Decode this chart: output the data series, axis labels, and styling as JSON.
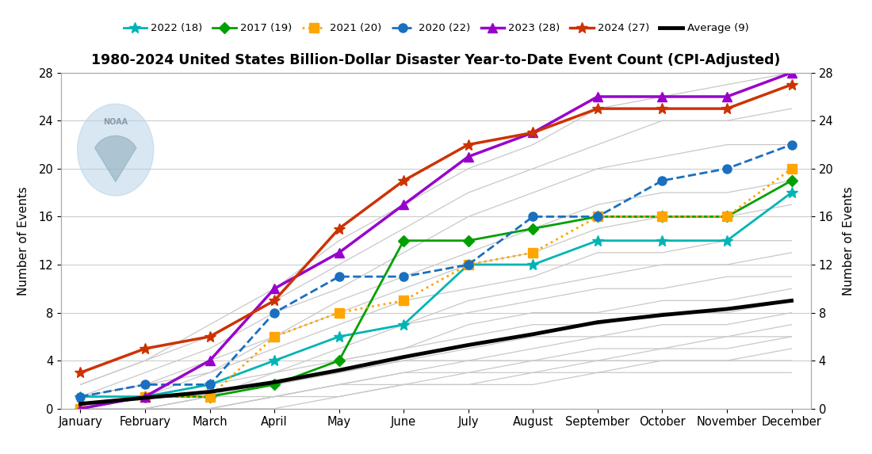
{
  "title": "1980-2024 United States Billion-Dollar Disaster Year-to-Date Event Count (CPI-Adjusted)",
  "ylabel_left": "Number of Events",
  "ylabel_right": "Number of Events",
  "months": [
    "January",
    "February",
    "March",
    "April",
    "May",
    "June",
    "July",
    "August",
    "September",
    "October",
    "November",
    "December"
  ],
  "ylim": [
    0,
    28
  ],
  "yticks": [
    0,
    4,
    8,
    12,
    16,
    20,
    24,
    28
  ],
  "series": {
    "2022": {
      "label": "2022 (18)",
      "color": "#00B4B4",
      "linestyle": "-",
      "marker": "*",
      "markersize": 10,
      "linewidth": 2.0,
      "zorder": 5,
      "data": [
        1,
        1,
        2,
        4,
        6,
        7,
        12,
        12,
        14,
        14,
        14,
        18
      ]
    },
    "2017": {
      "label": "2017 (19)",
      "color": "#00A000",
      "linestyle": "-",
      "marker": "D",
      "markersize": 7,
      "linewidth": 2.0,
      "zorder": 5,
      "data": [
        0,
        1,
        1,
        2,
        4,
        14,
        14,
        15,
        16,
        16,
        16,
        19
      ]
    },
    "2021": {
      "label": "2021 (20)",
      "color": "#FFA500",
      "linestyle": ":",
      "marker": "s",
      "markersize": 8,
      "linewidth": 2.0,
      "zorder": 5,
      "data": [
        0,
        1,
        1,
        6,
        8,
        9,
        12,
        13,
        16,
        16,
        16,
        20
      ]
    },
    "2020": {
      "label": "2020 (22)",
      "color": "#1A6FBF",
      "linestyle": "--",
      "marker": "o",
      "markersize": 8,
      "linewidth": 2.0,
      "zorder": 5,
      "data": [
        1,
        2,
        2,
        8,
        11,
        11,
        12,
        16,
        16,
        19,
        20,
        22
      ]
    },
    "2023": {
      "label": "2023 (28)",
      "color": "#9900CC",
      "linestyle": "-",
      "marker": "^",
      "markersize": 9,
      "linewidth": 2.5,
      "zorder": 6,
      "data": [
        0,
        1,
        4,
        10,
        13,
        17,
        21,
        23,
        26,
        26,
        26,
        28
      ]
    },
    "2024": {
      "label": "2024 (27)",
      "color": "#CC3300",
      "linestyle": "-",
      "marker": "*",
      "markersize": 10,
      "linewidth": 2.5,
      "zorder": 6,
      "data": [
        3,
        5,
        6,
        9,
        15,
        19,
        22,
        23,
        25,
        25,
        25,
        27
      ]
    },
    "average": {
      "label": "Average (9)",
      "color": "#000000",
      "linestyle": "-",
      "marker": "None",
      "markersize": 0,
      "linewidth": 3.5,
      "zorder": 7,
      "data": [
        0.4,
        0.9,
        1.4,
        2.2,
        3.2,
        4.3,
        5.3,
        6.2,
        7.2,
        7.8,
        8.3,
        9.0
      ]
    }
  },
  "background_gray_lines": [
    [
      0,
      0,
      0,
      0,
      1,
      2,
      2,
      2,
      3,
      3,
      3,
      3
    ],
    [
      0,
      0,
      0,
      1,
      1,
      2,
      2,
      3,
      3,
      4,
      4,
      4
    ],
    [
      0,
      0,
      0,
      1,
      2,
      2,
      3,
      3,
      4,
      4,
      4,
      5
    ],
    [
      0,
      0,
      0,
      1,
      2,
      3,
      3,
      4,
      4,
      5,
      5,
      6
    ],
    [
      0,
      0,
      1,
      1,
      2,
      3,
      4,
      4,
      5,
      5,
      6,
      6
    ],
    [
      0,
      0,
      1,
      2,
      3,
      4,
      4,
      5,
      6,
      6,
      6,
      7
    ],
    [
      0,
      0,
      1,
      2,
      3,
      4,
      5,
      6,
      6,
      7,
      7,
      8
    ],
    [
      0,
      1,
      1,
      2,
      4,
      5,
      6,
      7,
      7,
      8,
      8,
      9
    ],
    [
      0,
      1,
      1,
      3,
      4,
      5,
      7,
      8,
      8,
      9,
      9,
      10
    ],
    [
      0,
      1,
      2,
      3,
      5,
      7,
      8,
      9,
      10,
      10,
      11,
      11
    ],
    [
      0,
      1,
      2,
      4,
      6,
      7,
      9,
      10,
      11,
      12,
      12,
      13
    ],
    [
      0,
      1,
      3,
      5,
      7,
      9,
      10,
      11,
      13,
      13,
      14,
      14
    ],
    [
      1,
      2,
      3,
      6,
      8,
      10,
      12,
      13,
      15,
      16,
      16,
      17
    ],
    [
      1,
      2,
      4,
      6,
      9,
      11,
      13,
      15,
      17,
      18,
      18,
      19
    ],
    [
      1,
      3,
      5,
      8,
      10,
      13,
      16,
      18,
      20,
      21,
      22,
      22
    ],
    [
      2,
      4,
      6,
      9,
      12,
      15,
      18,
      20,
      22,
      24,
      24,
      25
    ],
    [
      2,
      4,
      7,
      10,
      14,
      17,
      20,
      22,
      25,
      26,
      27,
      28
    ]
  ],
  "background_color": "#FFFFFF",
  "grid_color": "#CCCCCC"
}
